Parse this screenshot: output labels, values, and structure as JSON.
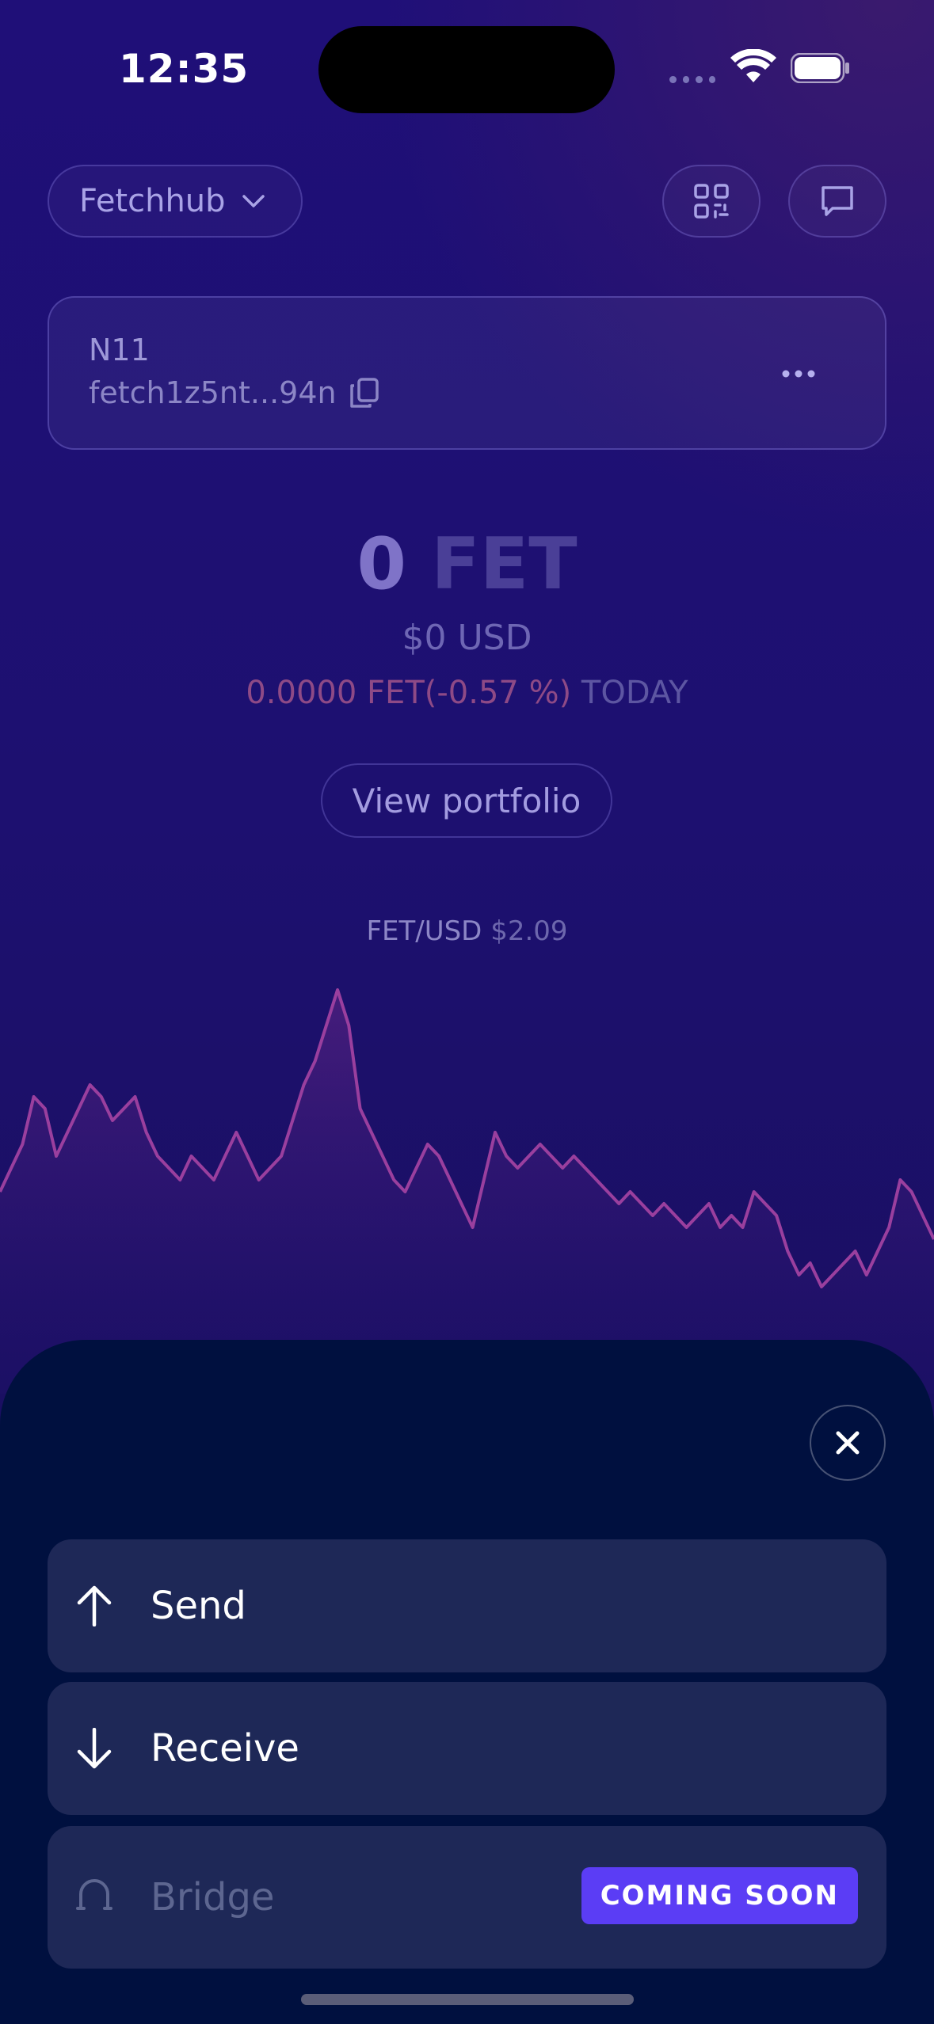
{
  "status_bar": {
    "time": "12:35"
  },
  "header": {
    "network": "Fetchhub"
  },
  "account": {
    "name": "N11",
    "address": "fetch1z5nt...94n"
  },
  "balance": {
    "amount": "0",
    "unit": "FET",
    "usd": "$0 USD",
    "change": "0.0000 FET(-0.57 %)",
    "change_period": "TODAY"
  },
  "portfolio_button": "View portfolio",
  "price": {
    "pair": "FET/USD",
    "value": "$2.09"
  },
  "chart_data": {
    "type": "area",
    "title": "FET/USD",
    "values": [
      2.03,
      2.05,
      2.07,
      2.11,
      2.1,
      2.06,
      2.08,
      2.1,
      2.12,
      2.11,
      2.09,
      2.1,
      2.11,
      2.08,
      2.06,
      2.05,
      2.04,
      2.06,
      2.05,
      2.04,
      2.06,
      2.08,
      2.06,
      2.04,
      2.05,
      2.06,
      2.09,
      2.12,
      2.14,
      2.17,
      2.2,
      2.17,
      2.1,
      2.08,
      2.06,
      2.04,
      2.03,
      2.05,
      2.07,
      2.06,
      2.04,
      2.02,
      2.0,
      2.04,
      2.08,
      2.06,
      2.05,
      2.06,
      2.07,
      2.06,
      2.05,
      2.06,
      2.05,
      2.04,
      2.03,
      2.02,
      2.03,
      2.02,
      2.01,
      2.02,
      2.01,
      2.0,
      2.01,
      2.02,
      2.0,
      2.01,
      2.0,
      2.03,
      2.02,
      2.01,
      1.98,
      1.96,
      1.97,
      1.95,
      1.96,
      1.97,
      1.98,
      1.96,
      1.98,
      2.0,
      2.04,
      2.03,
      2.01,
      1.99
    ],
    "accent_color": "#9a3f9e"
  },
  "sheet": {
    "actions": [
      {
        "label": "Send",
        "icon": "arrow-up-icon"
      },
      {
        "label": "Receive",
        "icon": "arrow-down-icon"
      },
      {
        "label": "Bridge",
        "icon": "bridge-icon",
        "badge": "COMING SOON"
      }
    ]
  }
}
